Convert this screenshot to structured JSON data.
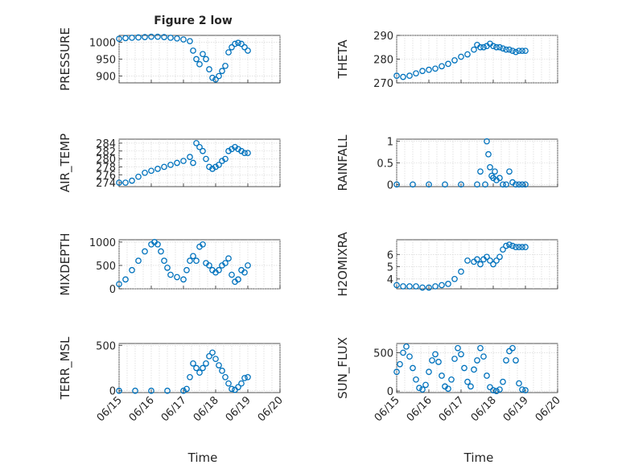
{
  "figure": {
    "title": "Figure 2 low",
    "xlabel": "Time",
    "x_tick_labels": [
      "06/15",
      "06/16",
      "06/17",
      "06/18",
      "06/19",
      "06/20"
    ],
    "marker_color": "#0072BD"
  },
  "chart_data": [
    {
      "type": "scatter",
      "panel": "PRESSURE",
      "ylabel": "PRESSURE",
      "title": "Figure 2 low",
      "xlim": [
        "06/15",
        "06/20"
      ],
      "ylim": [
        880,
        1020
      ],
      "yticks": [
        900,
        950,
        1000
      ],
      "ytick_labels": [
        "900",
        "950",
        "1000"
      ],
      "series": [
        {
          "x": [
            15.0,
            15.2,
            15.4,
            15.6,
            15.8,
            16.0,
            16.2,
            16.4,
            16.6,
            16.8,
            17.0,
            17.2,
            17.3,
            17.4,
            17.5,
            17.6,
            17.7,
            17.8,
            17.9,
            18.0,
            18.1,
            18.2,
            18.3,
            18.4,
            18.5,
            18.6,
            18.7,
            18.8,
            18.9,
            19.0
          ],
          "y": [
            1010,
            1012,
            1013,
            1014,
            1015,
            1016,
            1016,
            1015,
            1013,
            1011,
            1008,
            1003,
            975,
            950,
            935,
            965,
            950,
            920,
            895,
            890,
            900,
            915,
            930,
            970,
            985,
            995,
            998,
            995,
            985,
            975
          ]
        }
      ]
    },
    {
      "type": "scatter",
      "panel": "THETA",
      "ylabel": "THETA",
      "xlim": [
        "06/15",
        "06/20"
      ],
      "ylim": [
        270,
        290
      ],
      "yticks": [
        270,
        280,
        290
      ],
      "ytick_labels": [
        "270",
        "280",
        "290"
      ],
      "series": [
        {
          "x": [
            15.0,
            15.2,
            15.4,
            15.6,
            15.8,
            16.0,
            16.2,
            16.4,
            16.6,
            16.8,
            17.0,
            17.2,
            17.4,
            17.5,
            17.6,
            17.7,
            17.8,
            17.9,
            18.0,
            18.1,
            18.2,
            18.3,
            18.4,
            18.5,
            18.6,
            18.7,
            18.8,
            18.9,
            19.0
          ],
          "y": [
            273,
            272.5,
            273,
            274,
            275,
            275.5,
            276,
            277,
            278,
            279.5,
            281,
            282,
            284,
            286,
            285,
            285,
            285.5,
            286.5,
            285.5,
            285,
            285,
            284.5,
            284,
            284,
            283.5,
            283,
            283.5,
            283.5,
            283.5
          ]
        }
      ]
    },
    {
      "type": "scatter",
      "panel": "AIR_TEMP",
      "ylabel": "AIR_TEMP",
      "xlim": [
        "06/15",
        "06/20"
      ],
      "ylim": [
        273,
        285
      ],
      "yticks": [
        274,
        276,
        278,
        280,
        282,
        284
      ],
      "ytick_labels": [
        "274",
        "276",
        "278",
        "280",
        "282",
        "284"
      ],
      "series": [
        {
          "x": [
            15.0,
            15.2,
            15.4,
            15.6,
            15.8,
            16.0,
            16.2,
            16.4,
            16.6,
            16.8,
            17.0,
            17.2,
            17.3,
            17.4,
            17.5,
            17.6,
            17.7,
            17.8,
            17.9,
            18.0,
            18.1,
            18.2,
            18.3,
            18.4,
            18.5,
            18.6,
            18.7,
            18.8,
            18.9,
            19.0
          ],
          "y": [
            274,
            274,
            274.5,
            275.5,
            276.5,
            277,
            277.5,
            278,
            278.5,
            279,
            279.5,
            280.5,
            279,
            284,
            283,
            282,
            280,
            278,
            277.5,
            278,
            278.5,
            279.5,
            280,
            282,
            282.5,
            283,
            282.5,
            282,
            281.5,
            281.5
          ]
        }
      ]
    },
    {
      "type": "scatter",
      "panel": "RAINFALL",
      "ylabel": "RAINFALL",
      "xlim": [
        "06/15",
        "06/20"
      ],
      "ylim": [
        -0.05,
        1.05
      ],
      "yticks": [
        0,
        0.5,
        1
      ],
      "ytick_labels": [
        "0",
        "0.5",
        "1"
      ],
      "series": [
        {
          "x": [
            15.0,
            15.5,
            16.0,
            16.5,
            17.0,
            17.5,
            17.6,
            17.75,
            17.8,
            17.85,
            17.9,
            17.95,
            18.0,
            18.05,
            18.1,
            18.2,
            18.3,
            18.4,
            18.5,
            18.6,
            18.7,
            18.8,
            18.9,
            19.0
          ],
          "y": [
            0,
            0,
            0,
            0,
            0,
            0,
            0.3,
            0,
            1,
            0.7,
            0.4,
            0.2,
            0.15,
            0.3,
            0.1,
            0.15,
            0,
            0,
            0.3,
            0.05,
            0,
            0,
            0,
            0
          ]
        }
      ]
    },
    {
      "type": "scatter",
      "panel": "MIXDEPTH",
      "ylabel": "MIXDEPTH",
      "xlim": [
        "06/15",
        "06/20"
      ],
      "ylim": [
        0,
        1050
      ],
      "yticks": [
        0,
        500,
        1000
      ],
      "ytick_labels": [
        "0",
        "500",
        "1000"
      ],
      "series": [
        {
          "x": [
            15.0,
            15.2,
            15.4,
            15.6,
            15.8,
            16.0,
            16.1,
            16.2,
            16.3,
            16.4,
            16.5,
            16.6,
            16.8,
            17.0,
            17.1,
            17.2,
            17.3,
            17.4,
            17.5,
            17.6,
            17.7,
            17.8,
            17.9,
            18.0,
            18.1,
            18.2,
            18.3,
            18.4,
            18.5,
            18.6,
            18.7,
            18.8,
            18.9,
            19.0
          ],
          "y": [
            100,
            200,
            400,
            600,
            800,
            950,
            1000,
            950,
            800,
            600,
            450,
            300,
            250,
            200,
            400,
            600,
            700,
            600,
            900,
            950,
            550,
            500,
            400,
            350,
            400,
            500,
            550,
            650,
            300,
            150,
            200,
            400,
            350,
            500
          ]
        }
      ]
    },
    {
      "type": "scatter",
      "panel": "H2OMIXRA",
      "ylabel": "H2OMIXRA",
      "xlim": [
        "06/15",
        "06/20"
      ],
      "ylim": [
        3.2,
        7.2
      ],
      "yticks": [
        4,
        5,
        6
      ],
      "ytick_labels": [
        "4",
        "5",
        "6"
      ],
      "series": [
        {
          "x": [
            15.0,
            15.2,
            15.4,
            15.6,
            15.8,
            16.0,
            16.2,
            16.4,
            16.6,
            16.8,
            17.0,
            17.2,
            17.4,
            17.5,
            17.6,
            17.7,
            17.8,
            17.9,
            18.0,
            18.1,
            18.2,
            18.3,
            18.4,
            18.5,
            18.6,
            18.7,
            18.8,
            18.9,
            19.0
          ],
          "y": [
            3.5,
            3.4,
            3.4,
            3.4,
            3.3,
            3.3,
            3.4,
            3.5,
            3.6,
            4,
            4.6,
            5.5,
            5.4,
            5.6,
            5.2,
            5.6,
            5.8,
            5.5,
            5.2,
            5.5,
            5.8,
            6.4,
            6.7,
            6.8,
            6.7,
            6.6,
            6.6,
            6.6,
            6.6
          ]
        }
      ]
    },
    {
      "type": "scatter",
      "panel": "TERR_MSL",
      "ylabel": "TERR_MSL",
      "xlim": [
        "06/15",
        "06/20"
      ],
      "ylim": [
        -20,
        520
      ],
      "yticks": [
        0,
        500
      ],
      "ytick_labels": [
        "0",
        "500"
      ],
      "series": [
        {
          "x": [
            15.0,
            15.5,
            16.0,
            16.5,
            17.0,
            17.1,
            17.2,
            17.3,
            17.4,
            17.5,
            17.6,
            17.7,
            17.8,
            17.9,
            18.0,
            18.1,
            18.2,
            18.3,
            18.4,
            18.5,
            18.6,
            18.7,
            18.8,
            18.9,
            19.0
          ],
          "y": [
            0,
            0,
            0,
            0,
            0,
            20,
            150,
            300,
            250,
            200,
            250,
            300,
            380,
            420,
            350,
            280,
            220,
            150,
            80,
            20,
            10,
            40,
            80,
            140,
            150
          ]
        }
      ]
    },
    {
      "type": "scatter",
      "panel": "SUN_FLUX",
      "ylabel": "SUN_FLUX",
      "xlim": [
        "06/15",
        "06/20"
      ],
      "ylim": [
        -20,
        620
      ],
      "yticks": [
        0,
        500
      ],
      "ytick_labels": [
        "0",
        "500"
      ],
      "series": [
        {
          "x": [
            15.0,
            15.1,
            15.2,
            15.3,
            15.4,
            15.5,
            15.6,
            15.7,
            15.8,
            15.9,
            16.0,
            16.1,
            16.2,
            16.3,
            16.4,
            16.5,
            16.6,
            16.7,
            16.8,
            16.9,
            17.0,
            17.1,
            17.2,
            17.3,
            17.4,
            17.5,
            17.6,
            17.7,
            17.8,
            17.9,
            18.0,
            18.1,
            18.2,
            18.3,
            18.4,
            18.5,
            18.6,
            18.7,
            18.8,
            18.9,
            19.0
          ],
          "y": [
            250,
            350,
            500,
            580,
            450,
            300,
            150,
            40,
            20,
            80,
            250,
            400,
            480,
            380,
            200,
            60,
            30,
            150,
            420,
            560,
            480,
            300,
            120,
            60,
            280,
            400,
            560,
            450,
            200,
            50,
            10,
            0,
            20,
            120,
            400,
            520,
            560,
            400,
            100,
            20,
            10
          ]
        }
      ]
    }
  ]
}
